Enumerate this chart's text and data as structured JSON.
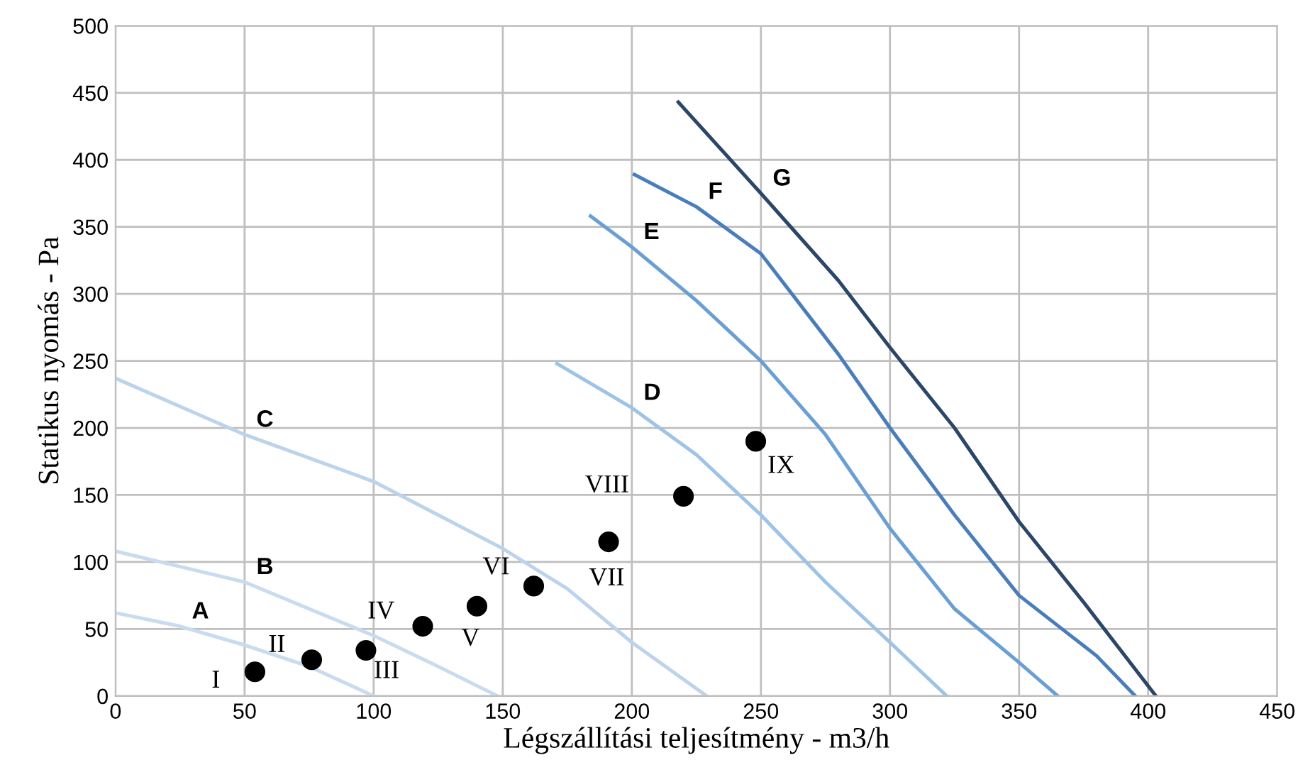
{
  "chart_data": {
    "type": "line",
    "xlabel": "Légszállítási teljesítmény - m3/h",
    "ylabel": "Statikus nyomás - Pa",
    "xlim": [
      0,
      450
    ],
    "ylim": [
      0,
      500
    ],
    "xticks": [
      0,
      50,
      100,
      150,
      200,
      250,
      300,
      350,
      400,
      450
    ],
    "yticks": [
      0,
      50,
      100,
      150,
      200,
      250,
      300,
      350,
      400,
      450,
      500
    ],
    "grid": true,
    "marker": "none",
    "line_style": "solid",
    "series": [
      {
        "name": "A",
        "color": "#c9dbef",
        "x": [
          0,
          25,
          50,
          75,
          100
        ],
        "values": [
          62,
          52,
          38,
          22,
          0
        ]
      },
      {
        "name": "B",
        "color": "#c9dbef",
        "x": [
          0,
          50,
          100,
          125,
          148
        ],
        "values": [
          108,
          85,
          45,
          22,
          0
        ]
      },
      {
        "name": "C",
        "color": "#bcd3ec",
        "x": [
          0,
          50,
          100,
          150,
          175,
          200,
          229
        ],
        "values": [
          237,
          195,
          160,
          110,
          80,
          40,
          0
        ]
      },
      {
        "name": "D",
        "color": "#9dc3e6",
        "x": [
          171,
          200,
          225,
          250,
          275,
          300,
          322
        ],
        "values": [
          248,
          215,
          180,
          135,
          85,
          40,
          0
        ]
      },
      {
        "name": "E",
        "color": "#6a9fd4",
        "x": [
          184,
          200,
          225,
          250,
          275,
          300,
          325,
          350,
          365
        ],
        "values": [
          358,
          335,
          295,
          250,
          195,
          125,
          65,
          25,
          0
        ]
      },
      {
        "name": "F",
        "color": "#4a7ebb",
        "x": [
          201,
          225,
          250,
          280,
          300,
          325,
          350,
          380,
          395
        ],
        "values": [
          389,
          365,
          330,
          255,
          200,
          135,
          75,
          30,
          0
        ]
      },
      {
        "name": "G",
        "color": "#2b4669",
        "x": [
          218,
          250,
          280,
          300,
          325,
          350,
          375,
          403
        ],
        "values": [
          443,
          375,
          310,
          260,
          200,
          130,
          70,
          0
        ]
      },
      {
        "type": "scatter",
        "color": "#000000",
        "marker": "circle",
        "x": [
          54,
          76,
          97,
          119,
          140,
          162,
          191,
          220,
          248
        ],
        "values": [
          18,
          27,
          34,
          52,
          67,
          82,
          115,
          149,
          190
        ],
        "value_labels": [
          "I",
          "II",
          "III",
          "IV",
          "V",
          "VI",
          "VII",
          "VIII",
          "IX"
        ]
      }
    ]
  }
}
